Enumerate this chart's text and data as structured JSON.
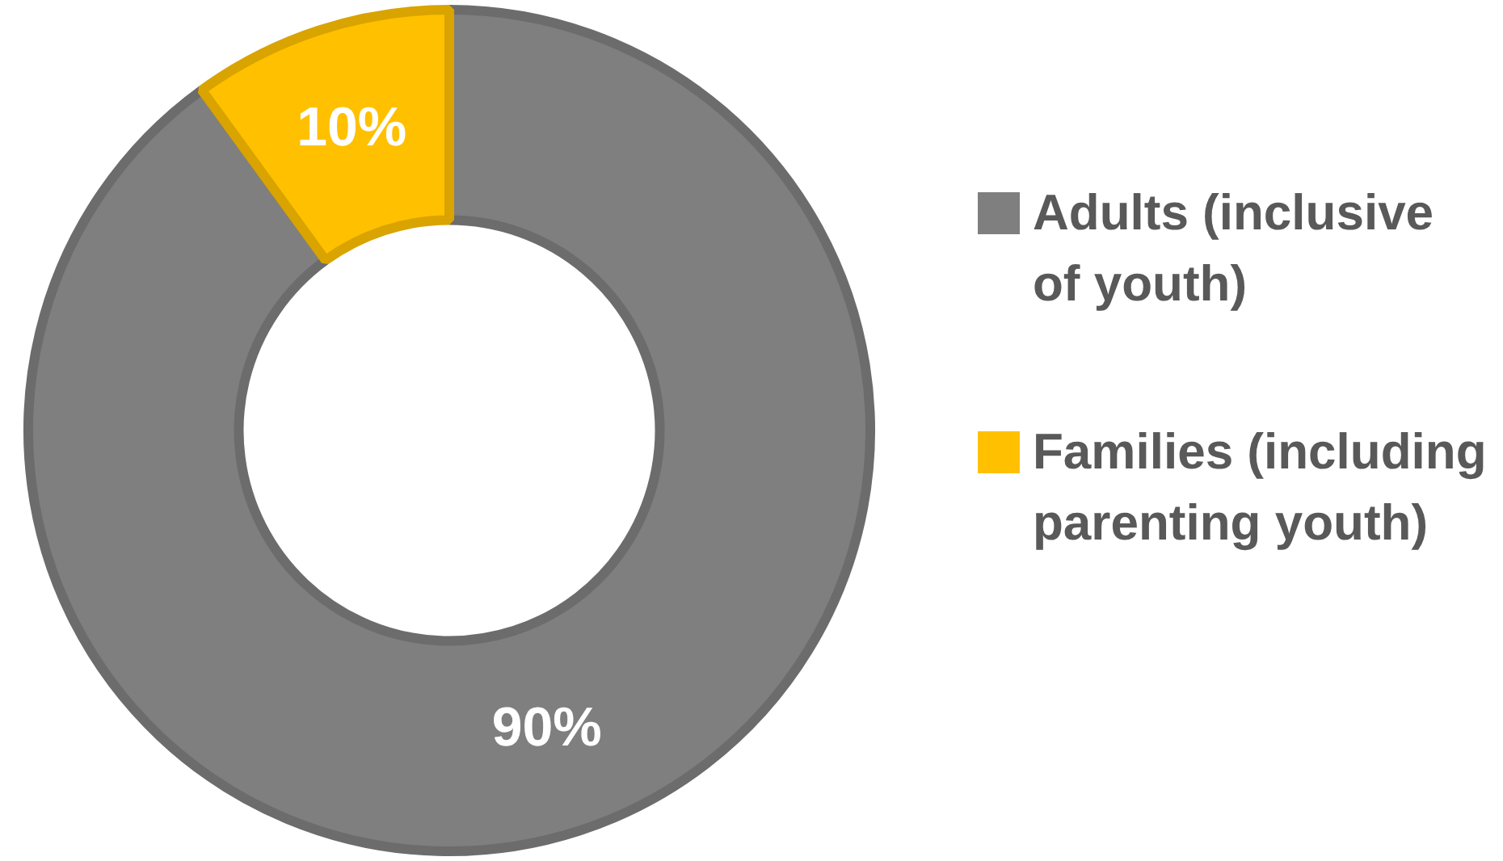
{
  "chart_data": {
    "type": "donut",
    "categories": [
      "Adults (inclusive of youth)",
      "Families (including parenting youth)"
    ],
    "values": [
      90,
      10
    ],
    "colors": [
      "#7f7f7f",
      "#ffc000"
    ],
    "value_labels": [
      "90%",
      "10%"
    ],
    "legend": "right"
  }
}
